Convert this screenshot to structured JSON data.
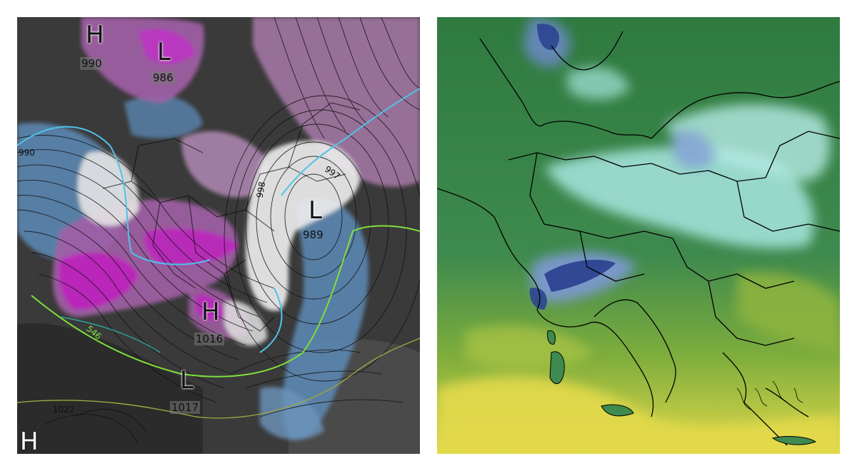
{
  "left_map": {
    "pressure_systems": [
      {
        "type": "H",
        "value": "990"
      },
      {
        "type": "L",
        "value": "986"
      },
      {
        "type": "L",
        "value": "989"
      },
      {
        "type": "H",
        "value": "1016"
      },
      {
        "type": "L",
        "value": "1017"
      },
      {
        "type": "H",
        "value": ""
      }
    ],
    "contour_labels": [
      "546",
      "998",
      "997",
      "1022",
      "990"
    ]
  },
  "right_map": {},
  "colors": {
    "left_background": "#3a3a3a",
    "rain_blue": "#5b86b0",
    "snow_purple": "#a25fa6",
    "heavy_magenta": "#c020c0",
    "thickness_line_green": "#7fe03a",
    "thickness_line_cyan": "#4fc3e8",
    "temp_dark_green": "#2f7a3f",
    "temp_light_cyan": "#a8e6e0",
    "temp_dark_blue": "#2a3f8f",
    "temp_yellow": "#e3d94a"
  }
}
